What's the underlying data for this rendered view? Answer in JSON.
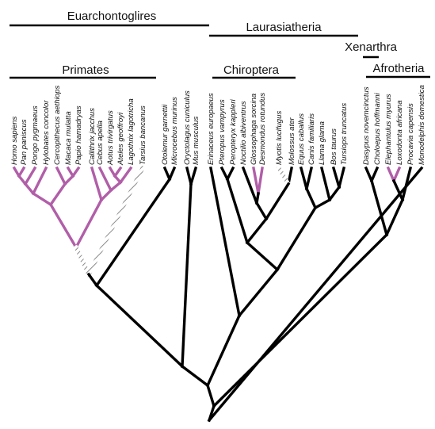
{
  "colors": {
    "default": "#000000",
    "primate": "#b15ea8",
    "hatched": "#b8b8b8",
    "label": "#111111"
  },
  "groups": {
    "euarchontoglires": "Euarchontoglires",
    "laurasiatheria": "Laurasiatheria",
    "xenarthra": "Xenarthra",
    "afrotheria": "Afrotheria",
    "primates": "Primates",
    "chiroptera": "Chiroptera"
  },
  "taxa": [
    "Homo sapiens",
    "Pan paniscus",
    "Pongo pygmaeus",
    "Hylobates concolor",
    "Cercopithecus aethiops",
    "Macaca mulatta",
    "Papio hamadryas",
    "Callithrix jacchus",
    "Cebus apella",
    "Aotus trivirgatus",
    "Ateles geoffroyi",
    "Lagothrix lagotricha",
    "Tarsius bancanus",
    "Otolemur garnettii",
    "Microcebus murinus",
    "Oryctolagus cuniculus",
    "Mus musculus",
    "Erinaceus europaeus",
    "Pteropus vampyrus",
    "Peropteryx kappleri",
    "Noctilio albiventrus",
    "Glossophaga sorcina",
    "Desmondus rotundus",
    "Myotis lucifugus",
    "Molossus ater",
    "Equus caballus",
    "Canis familiaris",
    "Llama glama",
    "Bos taurus",
    "Tursiops truncatus",
    "Dasypus novemcinctus",
    "Choloepus hoffmanni",
    "Elephantulus myurus",
    "Loxodonta africana",
    "Procavia capensis",
    "Monodelphis domestica"
  ]
}
